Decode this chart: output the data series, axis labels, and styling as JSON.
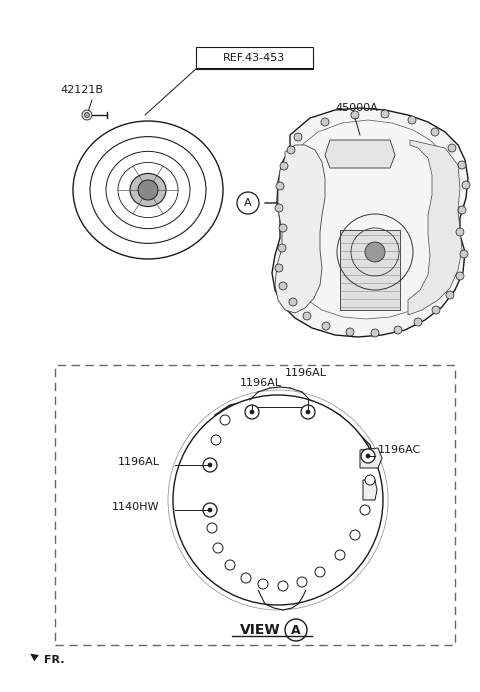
{
  "bg_color": "#ffffff",
  "fig_width": 4.8,
  "fig_height": 6.92,
  "dpi": 100,
  "xlim": [
    0,
    480
  ],
  "ylim": [
    0,
    692
  ],
  "label_42121B": "42121B",
  "label_REF": "REF.43-453",
  "label_45000A": "45000A",
  "label_1196AL": "1196AL",
  "label_1196AC": "1196AC",
  "label_1140HW": "1140HW",
  "label_VIEW": "VIEW",
  "label_A": "A",
  "label_FR": "FR.",
  "font_size_small": 8,
  "font_size_view": 9,
  "font_size_fr": 8,
  "line_color": "#1a1a1a",
  "light_gray": "#d0d0d0",
  "mid_gray": "#888888"
}
